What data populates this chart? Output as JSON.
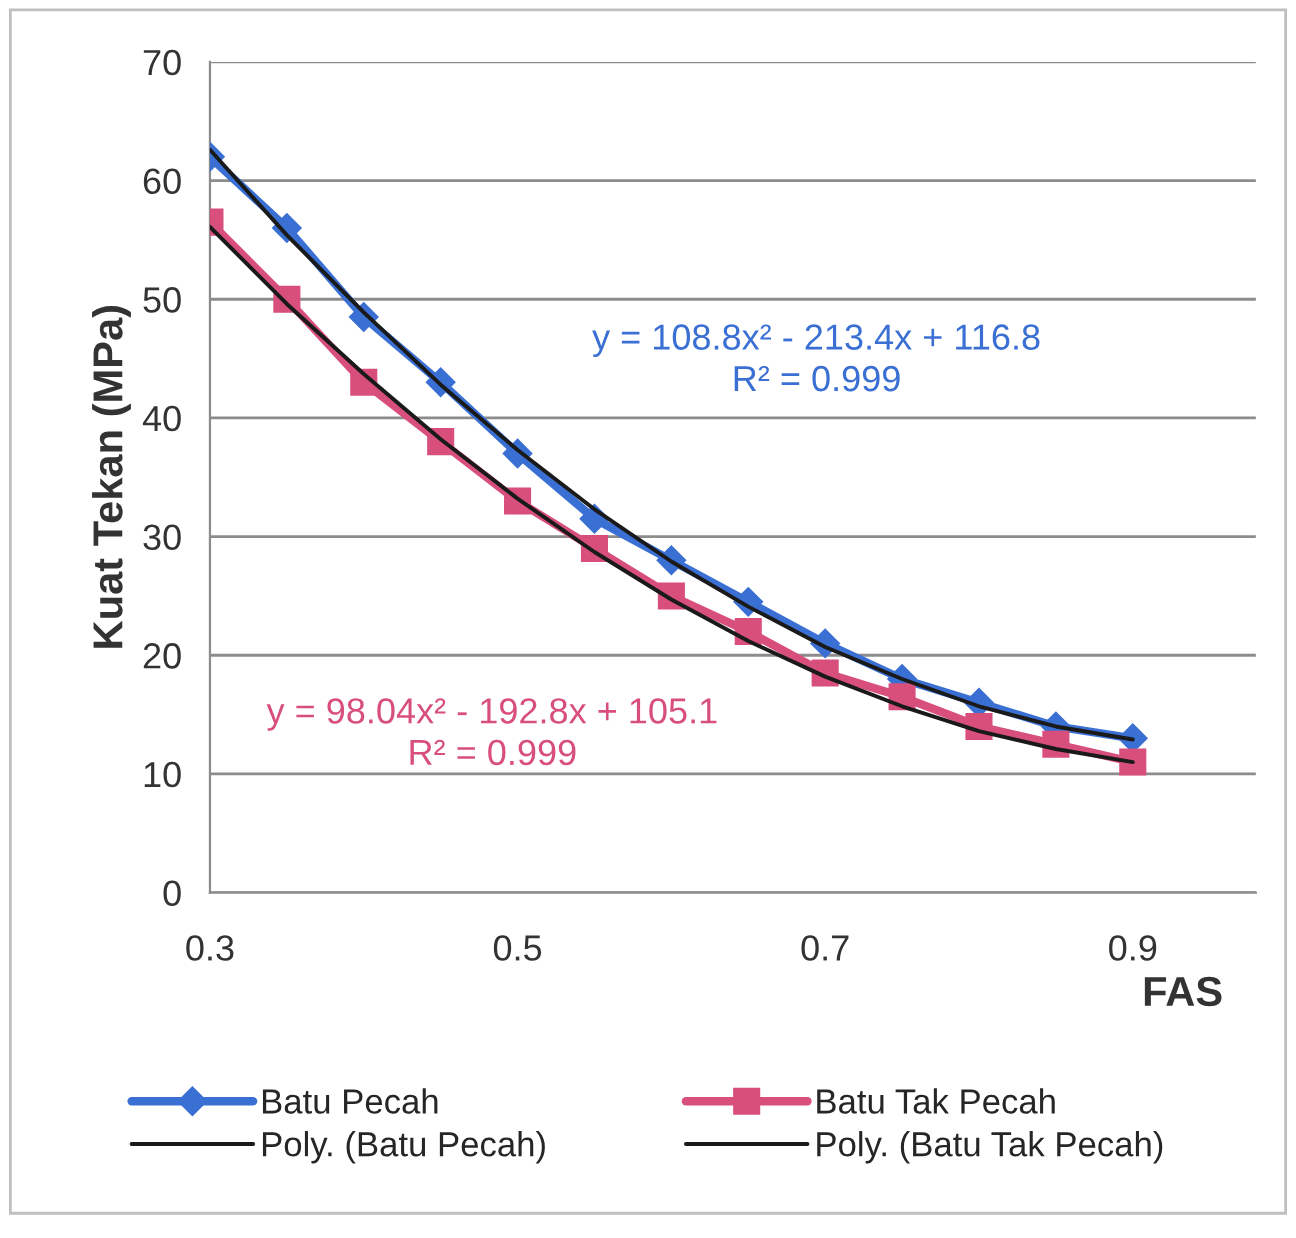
{
  "chart_data": {
    "type": "line",
    "xlabel": "FAS",
    "ylabel": "Kuat Tekan (MPa)",
    "x": [
      0.3,
      0.35,
      0.4,
      0.45,
      0.5,
      0.55,
      0.6,
      0.65,
      0.7,
      0.75,
      0.8,
      0.85,
      0.9
    ],
    "series": [
      {
        "name": "Batu Pecah",
        "color": "#3a6fd3",
        "marker": "diamond",
        "values": [
          62,
          56,
          48.5,
          43,
          37,
          31.5,
          28,
          24.5,
          21,
          18,
          16,
          14,
          13
        ]
      },
      {
        "name": "Poly. (Batu Pecah)",
        "color": "#1a1a1a",
        "marker": "none",
        "values": [
          62.6,
          55.4,
          48.9,
          42.8,
          37.3,
          32.3,
          27.9,
          24.1,
          20.7,
          18,
          15.7,
          14,
          12.9
        ]
      },
      {
        "name": "Batu Tak Pecah",
        "color": "#d84f7c",
        "marker": "square",
        "values": [
          56.5,
          50,
          43,
          38,
          33,
          29,
          25,
          22,
          18.5,
          16.5,
          14,
          12.5,
          11
        ]
      },
      {
        "name": "Poly. (Batu Tak Pecah)",
        "color": "#1a1a1a",
        "marker": "none",
        "values": [
          56.1,
          49.6,
          43.7,
          38.2,
          33.2,
          28.7,
          24.7,
          21.2,
          18.2,
          15.7,
          13.6,
          12.1,
          11
        ]
      }
    ],
    "annotations": [
      "y = 108.8x² - 213.4x + 116.8\nR² = 0.999",
      "y = 98.04x² - 192.8x + 105.1\nR² = 0.999"
    ],
    "xlim": [
      0.3,
      0.98
    ],
    "xticks": [
      0.3,
      0.5,
      0.7,
      0.9
    ],
    "ylim": [
      0,
      70
    ],
    "yticks": [
      0,
      10,
      20,
      30,
      40,
      50,
      60,
      70
    ],
    "grid": "y",
    "legend": "bottom",
    "line_style": "solid"
  }
}
